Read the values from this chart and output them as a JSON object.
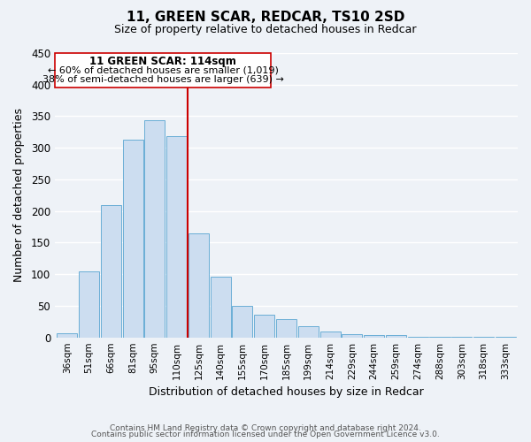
{
  "title": "11, GREEN SCAR, REDCAR, TS10 2SD",
  "subtitle": "Size of property relative to detached houses in Redcar",
  "xlabel": "Distribution of detached houses by size in Redcar",
  "ylabel": "Number of detached properties",
  "bar_color": "#ccddf0",
  "bar_edge_color": "#6aaed6",
  "categories": [
    "36sqm",
    "51sqm",
    "66sqm",
    "81sqm",
    "95sqm",
    "110sqm",
    "125sqm",
    "140sqm",
    "155sqm",
    "170sqm",
    "185sqm",
    "199sqm",
    "214sqm",
    "229sqm",
    "244sqm",
    "259sqm",
    "274sqm",
    "288sqm",
    "303sqm",
    "318sqm",
    "333sqm"
  ],
  "values": [
    6,
    105,
    210,
    313,
    343,
    318,
    165,
    96,
    50,
    36,
    29,
    18,
    9,
    5,
    4,
    4,
    1,
    1,
    1,
    1,
    1
  ],
  "ylim": [
    0,
    450
  ],
  "yticks": [
    0,
    50,
    100,
    150,
    200,
    250,
    300,
    350,
    400,
    450
  ],
  "vline_color": "#cc0000",
  "annotation_title": "11 GREEN SCAR: 114sqm",
  "annotation_line1": "← 60% of detached houses are smaller (1,019)",
  "annotation_line2": "38% of semi-detached houses are larger (639) →",
  "annotation_box_color": "#ffffff",
  "annotation_box_edge": "#cc0000",
  "footer1": "Contains HM Land Registry data © Crown copyright and database right 2024.",
  "footer2": "Contains public sector information licensed under the Open Government Licence v3.0.",
  "background_color": "#eef2f7",
  "grid_color": "#ffffff"
}
